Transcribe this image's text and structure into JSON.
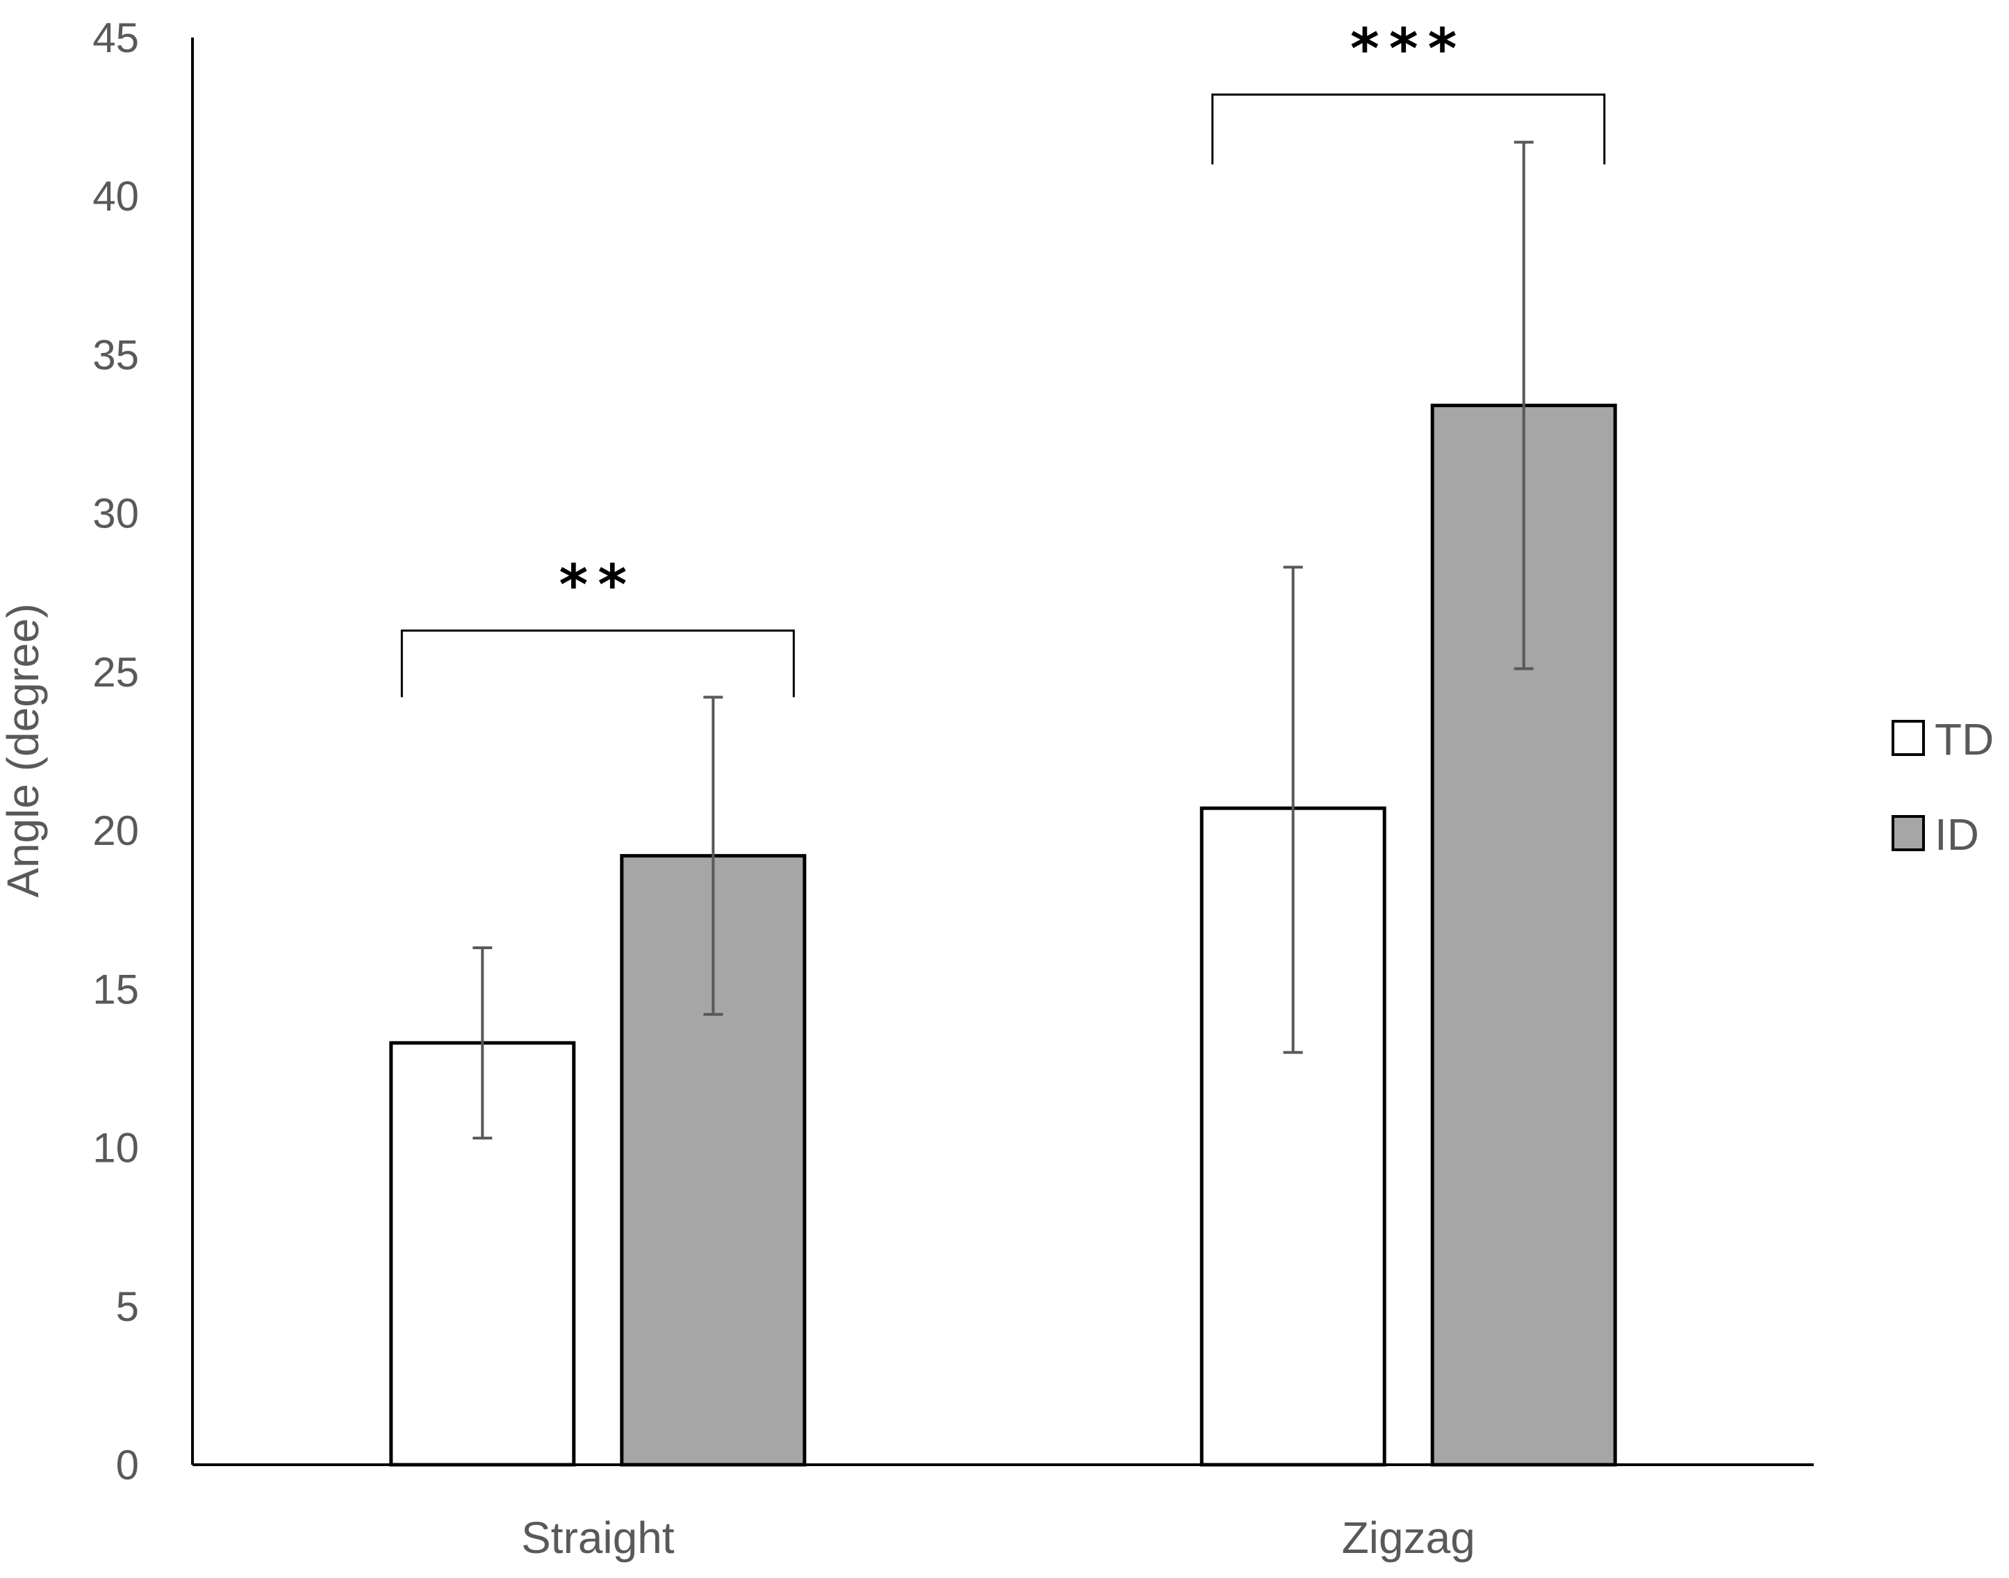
{
  "chart_data": {
    "type": "bar",
    "title": "",
    "xlabel": "",
    "ylabel": "Angle (degree)",
    "ylim": [
      0,
      45
    ],
    "yticks": [
      0,
      5,
      10,
      15,
      20,
      25,
      30,
      35,
      40,
      45
    ],
    "grid": false,
    "legend_position": "right",
    "categories": [
      "Straight",
      "Zigzag"
    ],
    "series": [
      {
        "name": "TD",
        "color": "#ffffff",
        "values": [
          13.3,
          20.7
        ],
        "error_low": [
          10.3,
          13.0
        ],
        "error_high": [
          16.3,
          28.3
        ]
      },
      {
        "name": "ID",
        "color": "#a6a6a6",
        "values": [
          19.2,
          33.4
        ],
        "error_low": [
          14.2,
          25.1
        ],
        "error_high": [
          24.2,
          41.7
        ]
      }
    ],
    "annotations": [
      {
        "category": "Straight",
        "label": "**",
        "bracket_y": 26.3,
        "leg_bottom_y": 24.2
      },
      {
        "category": "Zigzag",
        "label": "***",
        "bracket_y": 43.2,
        "leg_bottom_y": 41.0
      }
    ]
  }
}
